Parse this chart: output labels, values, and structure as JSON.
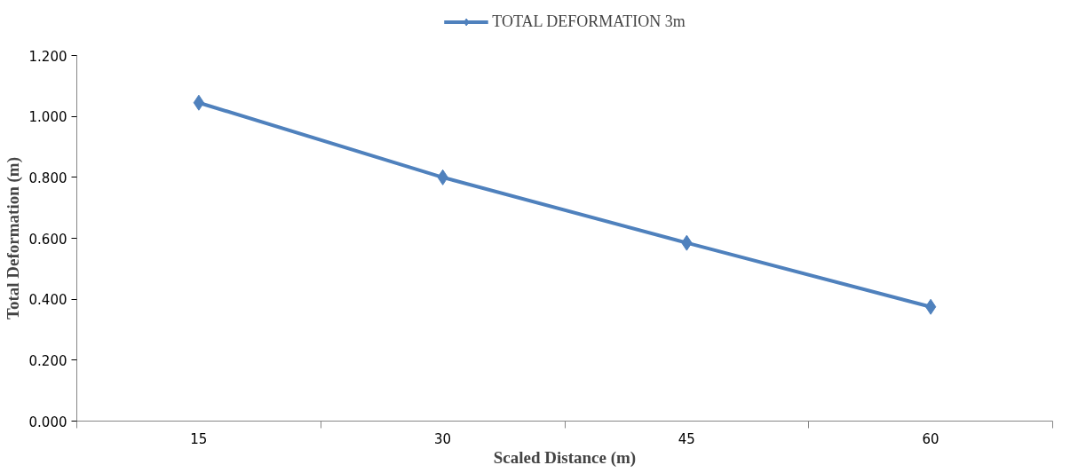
{
  "chart_data": {
    "type": "line",
    "xlabel": "Scaled Distance (m)",
    "ylabel": "Total Deformation (m)",
    "categories": [
      "15",
      "30",
      "45",
      "60"
    ],
    "series": [
      {
        "name": "TOTAL DEFORMATION 3m",
        "color": "#4f81bd",
        "values": [
          1.045,
          0.8,
          0.585,
          0.375
        ]
      }
    ],
    "ylim": [
      0,
      1.2
    ],
    "yticks": [
      {
        "value": 0,
        "label": "0.000"
      },
      {
        "value": 0.2,
        "label": "0.200"
      },
      {
        "value": 0.4,
        "label": "0.400"
      },
      {
        "value": 0.6,
        "label": "0.600"
      },
      {
        "value": 0.8,
        "label": "0.800"
      },
      {
        "value": 1.0,
        "label": "1.000"
      },
      {
        "value": 1.2,
        "label": "1.200"
      }
    ],
    "legend": "top",
    "marker": "diamond",
    "line_style": "solid"
  }
}
